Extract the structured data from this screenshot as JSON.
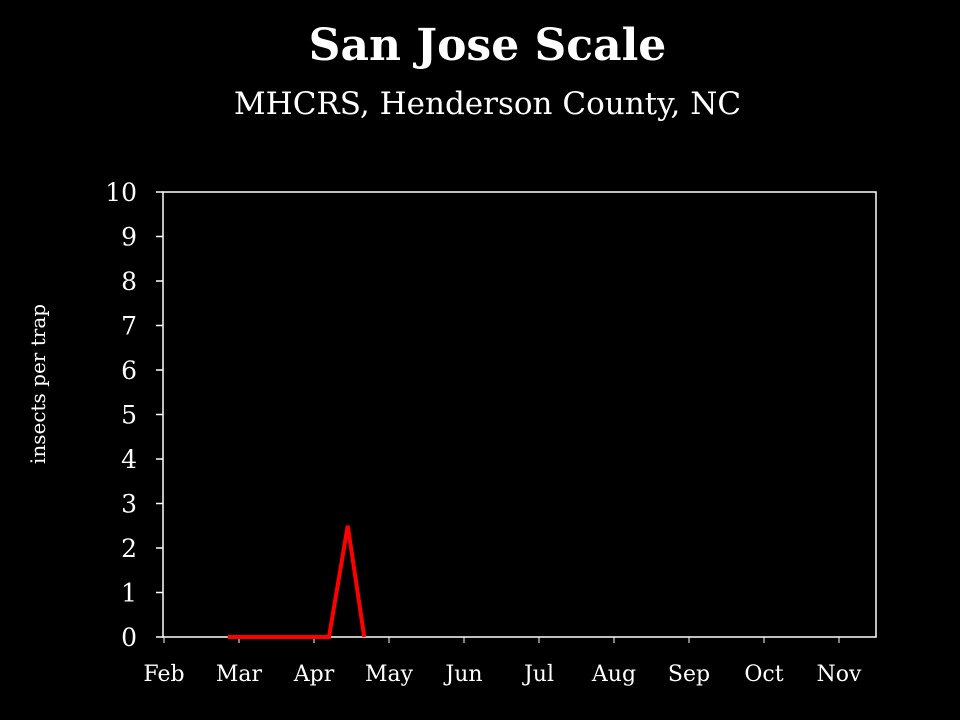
{
  "chart_data": {
    "type": "line",
    "title": "San Jose Scale",
    "subtitle": "MHCRS, Henderson County, NC",
    "xlabel": "",
    "ylabel": "insects per trap",
    "ylim": [
      0,
      10
    ],
    "yticks": [
      "0",
      "1",
      "2",
      "3",
      "4",
      "5",
      "6",
      "7",
      "8",
      "9",
      "10"
    ],
    "x_categories": [
      "Feb",
      "Mar",
      "Apr",
      "May",
      "Jun",
      "Jul",
      "Aug",
      "Sep",
      "Oct",
      "Nov"
    ],
    "grid": false,
    "legend": "none",
    "series": [
      {
        "color": "#ff0000",
        "points": [
          {
            "x": 0.85,
            "y": 0
          },
          {
            "x": 2.2,
            "y": 0
          },
          {
            "x": 2.45,
            "y": 2.5
          },
          {
            "x": 2.67,
            "y": 0
          }
        ]
      }
    ]
  }
}
